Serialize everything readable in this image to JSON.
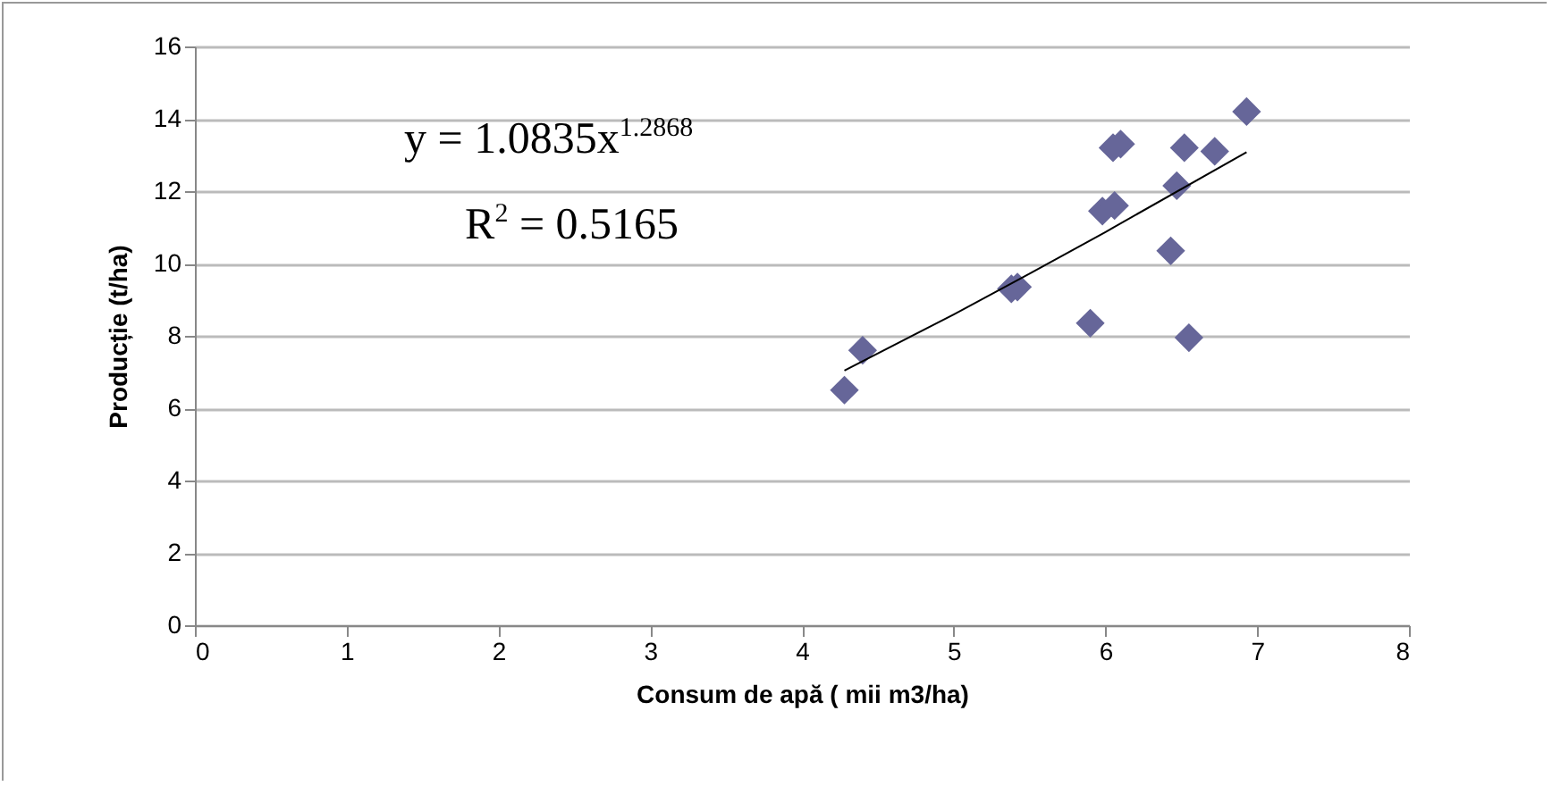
{
  "chart_data": {
    "type": "scatter",
    "xlabel": "Consum de apă ( mii m3/ha)",
    "ylabel": "Producție (t/ha)",
    "x": [
      4.28,
      4.4,
      5.38,
      5.42,
      5.9,
      5.98,
      6.06,
      6.05,
      6.1,
      6.43,
      6.47,
      6.52,
      6.55,
      6.72,
      6.93
    ],
    "series": [
      {
        "color": "#666699",
        "marker": "diamond",
        "values": [
          6.5,
          7.6,
          9.3,
          9.35,
          8.35,
          11.45,
          11.6,
          13.2,
          13.3,
          10.35,
          12.15,
          13.2,
          7.95,
          13.1,
          14.2
        ]
      },
      {
        "type": "line",
        "color": "#000000",
        "marker": "none",
        "line_style": "solid",
        "x": [
          4.28,
          5,
          5.5,
          6,
          6.93
        ],
        "values": [
          7.04,
          8.59,
          9.72,
          10.87,
          13.08
        ]
      }
    ],
    "annotations": [
      "y = 1.0835x$^{1.2868}$",
      "R$^{2}$ = 0.5165"
    ],
    "xlim": [
      0,
      8
    ],
    "xticks": [
      0,
      1,
      2,
      3,
      4,
      5,
      6,
      7,
      8
    ],
    "ylim": [
      0,
      16
    ],
    "yticks": [
      0,
      2,
      4,
      6,
      8,
      10,
      12,
      14,
      16
    ],
    "grid": "y"
  }
}
